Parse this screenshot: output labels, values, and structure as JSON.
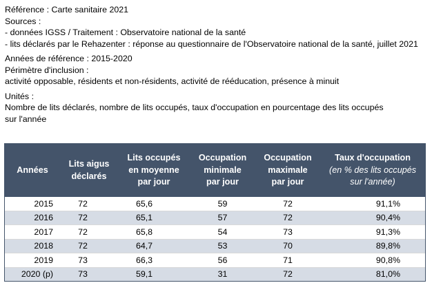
{
  "notes": {
    "reference": "Référence : Carte sanitaire 2021",
    "sources_label": "Sources :",
    "source_1": "- données IGSS / Traitement : Observatoire national de la santé",
    "source_2": "- lits déclarés par le Rehazenter : réponse au questionnaire de l'Observatoire national de la santé, juillet 2021",
    "reference_years": "Années de référence : 2015-2020",
    "scope_label": "Périmètre d'inclusion :",
    "scope_text": "activité opposable, résidents et non-résidents, activité de rééducation, présence à minuit",
    "units_label": "Unités :",
    "units_line_1": "Nombre de lits déclarés, nombre de lits occupés, taux d'occupation en pourcentage des lits occupés",
    "units_line_2": "sur l'année"
  },
  "table": {
    "headers": {
      "col_year": "Années",
      "col_beds_1": "Lits aigus",
      "col_beds_2": "déclarés",
      "col_avg_1": "Lits occupés",
      "col_avg_2": "en moyenne",
      "col_avg_3": "par jour",
      "col_min_1": "Occupation",
      "col_min_2": "minimale",
      "col_min_3": "par jour",
      "col_max_1": "Occupation",
      "col_max_2": "maximale",
      "col_max_3": "par jour",
      "col_rate_1": "Taux d'occupation",
      "col_rate_2": "(en % des lits occupés",
      "col_rate_3": "sur l'année)"
    },
    "rows": [
      {
        "year": "2015",
        "beds": "72",
        "avg": "65,6",
        "min": "59",
        "max": "72",
        "rate": "91,1%"
      },
      {
        "year": "2016",
        "beds": "72",
        "avg": "65,1",
        "min": "57",
        "max": "72",
        "rate": "90,4%"
      },
      {
        "year": "2017",
        "beds": "72",
        "avg": "65,8",
        "min": "54",
        "max": "73",
        "rate": "91,3%"
      },
      {
        "year": "2018",
        "beds": "72",
        "avg": "64,7",
        "min": "53",
        "max": "70",
        "rate": "89,8%"
      },
      {
        "year": "2019",
        "beds": "73",
        "avg": "66,3",
        "min": "56",
        "max": "71",
        "rate": "90,8%"
      },
      {
        "year": "2020 (p)",
        "beds": "73",
        "avg": "59,1",
        "min": "31",
        "max": "72",
        "rate": "81,0%"
      }
    ]
  },
  "colors": {
    "header_bg": "#44546a",
    "header_text": "#ffffff",
    "stripe": "#d6dce5"
  }
}
